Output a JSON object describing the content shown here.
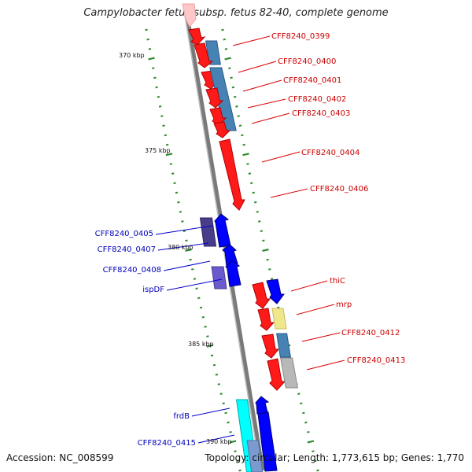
{
  "title": "Campylobacter fetus subsp. fetus 82-40, complete genome",
  "accession_text": "Accession: NC_008599",
  "topology_text": "Topology: circular; Length: 1,773,615 bp; Genes: 1,770",
  "colors": {
    "backbone": "#808080",
    "tick": "#2e8b2e",
    "forward_label": "#cc0000",
    "reverse_label": "#0000bb",
    "forward_gene": "#ff0000",
    "reverse_gene": "#0000ff",
    "cog_blue": "#4682b4",
    "cog_purple": "#483d8b",
    "cog_violet": "#6a5acd",
    "cog_yellow": "#f0e68c",
    "cog_gray": "#b8b8b8",
    "cog_cyan": "#00ffff",
    "pink": "#ffc0c0"
  },
  "axis": {
    "tick_labels": [
      "370 kbp",
      "375 kbp",
      "380 kbp",
      "385 kbp",
      "390 kbp"
    ]
  },
  "genes": [
    {
      "name": "CFF8240_0399",
      "strand": "+"
    },
    {
      "name": "CFF8240_0400",
      "strand": "+"
    },
    {
      "name": "CFF8240_0401",
      "strand": "+"
    },
    {
      "name": "CFF8240_0402",
      "strand": "+"
    },
    {
      "name": "CFF8240_0403",
      "strand": "+"
    },
    {
      "name": "CFF8240_0404",
      "strand": "+"
    },
    {
      "name": "CFF8240_0406",
      "strand": "+"
    },
    {
      "name": "CFF8240_0405",
      "strand": "-"
    },
    {
      "name": "CFF8240_0407",
      "strand": "-"
    },
    {
      "name": "CFF8240_0408",
      "strand": "-"
    },
    {
      "name": "ispDF",
      "strand": "-"
    },
    {
      "name": "thiC",
      "strand": "+"
    },
    {
      "name": "mrp",
      "strand": "+"
    },
    {
      "name": "CFF8240_0412",
      "strand": "+"
    },
    {
      "name": "CFF8240_0413",
      "strand": "+"
    },
    {
      "name": "frdB",
      "strand": "-"
    },
    {
      "name": "CFF8240_0415",
      "strand": "-"
    }
  ]
}
